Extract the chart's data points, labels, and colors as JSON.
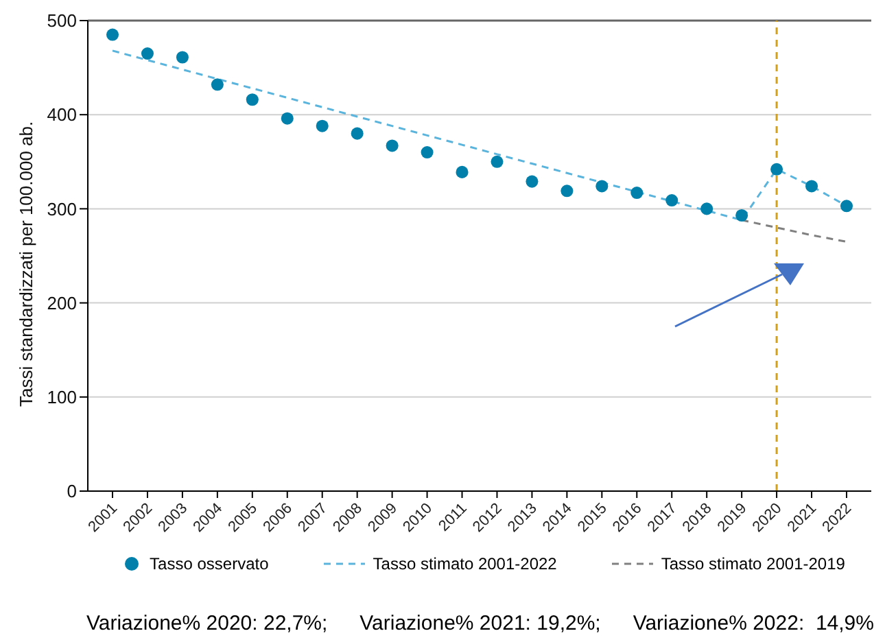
{
  "chart_data": {
    "type": "scatter",
    "ylabel": "Tassi standardizzati per 100.000 ab.",
    "categories": [
      "2001",
      "2002",
      "2003",
      "2004",
      "2005",
      "2006",
      "2007",
      "2008",
      "2009",
      "2010",
      "2011",
      "2012",
      "2013",
      "2014",
      "2015",
      "2016",
      "2017",
      "2018",
      "2019",
      "2020",
      "2021",
      "2022"
    ],
    "series": [
      {
        "name": "Tasso osservato",
        "color": "#0080ab",
        "marker": "circle",
        "values": [
          485,
          465,
          461,
          432,
          416,
          396,
          388,
          380,
          367,
          360,
          339,
          350,
          329,
          319,
          324,
          317,
          309,
          300,
          293,
          342,
          324,
          303
        ]
      },
      {
        "name": "Tasso stimato 2001-2022",
        "type": "line",
        "color": "#5ab4dc",
        "line_style": "dashed",
        "marker": "none",
        "values": [
          468,
          458,
          448,
          438,
          428,
          418,
          408,
          398,
          388,
          378,
          368,
          358,
          348,
          338,
          328,
          318,
          308,
          298,
          288,
          342,
          324,
          303
        ]
      },
      {
        "name": "Tasso stimato 2001-2019",
        "type": "line",
        "color": "#808080",
        "line_style": "dashed",
        "marker": "none",
        "values": [
          null,
          null,
          null,
          null,
          null,
          null,
          null,
          null,
          null,
          null,
          null,
          null,
          null,
          null,
          null,
          null,
          null,
          null,
          288,
          280,
          272,
          265
        ]
      }
    ],
    "ylim": [
      0,
      500
    ],
    "yticks": [
      0,
      100,
      200,
      300,
      400,
      500
    ],
    "grid": "y",
    "legend": "bottom",
    "ref_lines": [
      {
        "axis": "x",
        "value": "2020",
        "color": "#d4a017",
        "line_style": "dashed"
      }
    ],
    "annotations": [
      "Variazione% 2020: 22,7%;",
      "Variazione% 2021: 19,2%;",
      "Variazione% 2022:  14,9%"
    ]
  }
}
